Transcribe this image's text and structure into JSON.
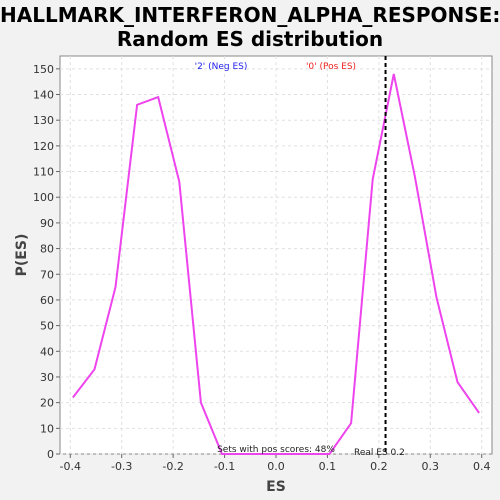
{
  "title_line1": "HALLMARK_INTERFERON_ALPHA_RESPONSE:",
  "title_line2": "Random ES distribution",
  "colors": {
    "background": "#f2f2f2",
    "plot_background": "#ffffff",
    "line": "#ee44ee",
    "neg_label": "#2222ee",
    "pos_label": "#ee2222",
    "grid": "#e0e0e0"
  },
  "chart_data": {
    "type": "line",
    "xlabel": "ES",
    "ylabel": "P(ES)",
    "xlim": [
      -0.42,
      0.42
    ],
    "ylim": [
      0,
      155
    ],
    "x_ticks": [
      -0.4,
      -0.3,
      -0.2,
      -0.1,
      0.0,
      0.1,
      0.2,
      0.3,
      0.4
    ],
    "x_tick_labels": [
      "-0.4",
      "-0.3",
      "-0.2",
      "-0.1",
      "0.0",
      "0.1",
      "0.2",
      "0.3",
      "0.4"
    ],
    "y_ticks": [
      0,
      10,
      20,
      30,
      40,
      50,
      60,
      70,
      80,
      90,
      100,
      110,
      120,
      130,
      140,
      150
    ],
    "grid": true,
    "series": [
      {
        "x": [
          -0.395,
          -0.353,
          -0.312,
          -0.27,
          -0.229,
          -0.188,
          -0.146,
          -0.105,
          -0.063,
          0.0,
          0.063,
          0.104,
          0.146,
          0.188,
          0.229,
          0.27,
          0.312,
          0.353,
          0.395
        ],
        "y": [
          22,
          33,
          65,
          136,
          139,
          106,
          20,
          0,
          0,
          0,
          0,
          0,
          12,
          107,
          148,
          108,
          61,
          28,
          16
        ]
      }
    ],
    "vline": {
      "x": 0.213,
      "style": "dashed"
    },
    "annotations": {
      "neg_label": "'2' (Neg ES)",
      "pos_label": "'0' (Pos ES)",
      "sets_with_pos": "Sets with pos scores: 48%",
      "real_es": "Real ES 0.2"
    }
  }
}
